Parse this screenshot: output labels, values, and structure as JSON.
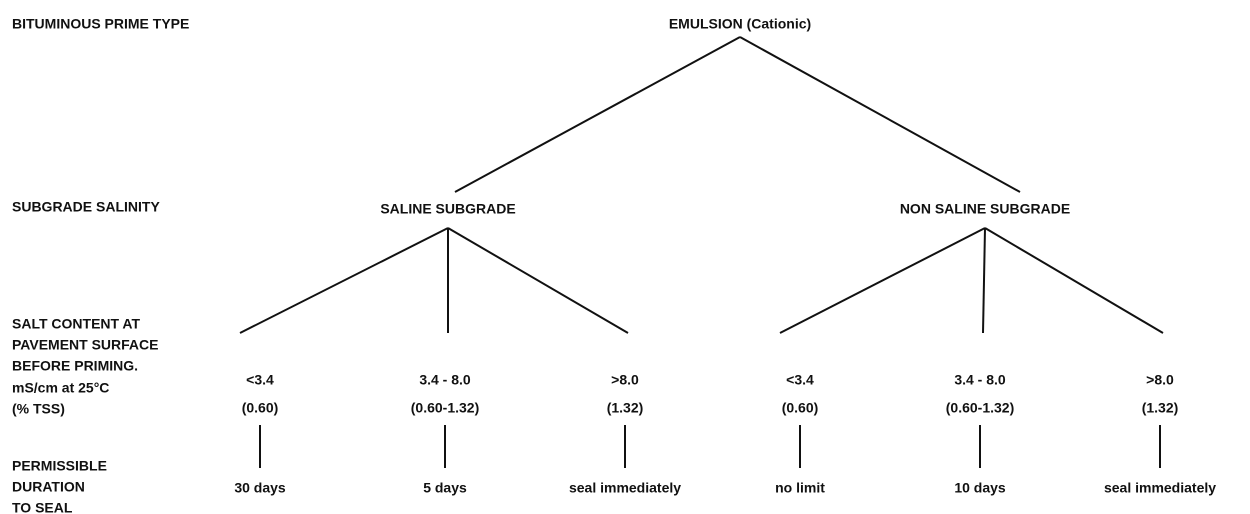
{
  "row_labels": {
    "prime_type": "BITUMINOUS PRIME TYPE",
    "salinity": "SUBGRADE SALINITY",
    "salt_content": [
      "SALT CONTENT AT",
      "PAVEMENT SURFACE",
      "BEFORE PRIMING."
    ],
    "units": "mS/cm at 25°C",
    "tss": "(% TSS)",
    "duration": [
      "PERMISSIBLE",
      "DURATION",
      "TO SEAL"
    ]
  },
  "root": {
    "label": "EMULSION (Cationic)"
  },
  "branches": [
    {
      "label": "SALINE SUBGRADE",
      "leaves": [
        {
          "range": "<3.4",
          "tss": "(0.60)",
          "duration": "30 days"
        },
        {
          "range": "3.4 - 8.0",
          "tss": "(0.60-1.32)",
          "duration": "5 days"
        },
        {
          "range": ">8.0",
          "tss": "(1.32)",
          "duration": "seal immediately"
        }
      ]
    },
    {
      "label": "NON SALINE SUBGRADE",
      "leaves": [
        {
          "range": "<3.4",
          "tss": "(0.60)",
          "duration": "no limit"
        },
        {
          "range": "3.4 - 8.0",
          "tss": "(0.60-1.32)",
          "duration": "10 days"
        },
        {
          "range": ">8.0",
          "tss": "(1.32)",
          "duration": "seal immediately"
        }
      ]
    }
  ]
}
